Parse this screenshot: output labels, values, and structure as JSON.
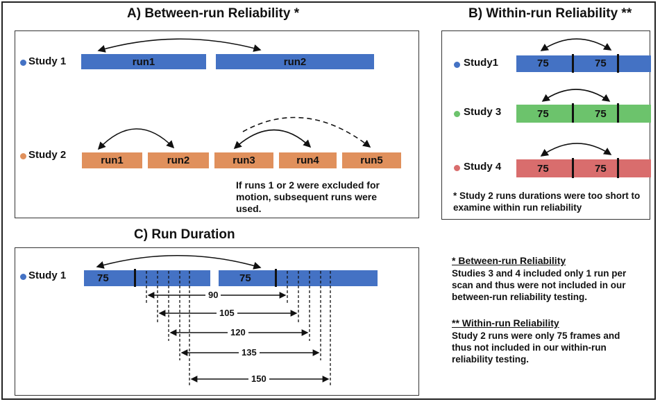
{
  "panel_a": {
    "title": "A) Between-run Reliability *",
    "study1": {
      "label": "Study 1",
      "dot_color": "#4472c4",
      "runs": [
        "run1",
        "run2"
      ]
    },
    "study2": {
      "label": "Study 2",
      "dot_color": "#e0905c",
      "runs": [
        "run1",
        "run2",
        "run3",
        "run4",
        "run5"
      ]
    },
    "note": "If runs 1 or 2 were excluded for motion,  subsequent runs were used."
  },
  "panel_b": {
    "title": "B) Within-run Reliability **",
    "studies": [
      {
        "label": "Study1",
        "dot_color": "#4472c4",
        "segments": [
          "75",
          "75"
        ]
      },
      {
        "label": "Study 3",
        "dot_color": "#6cc36c",
        "segments": [
          "75",
          "75"
        ]
      },
      {
        "label": "Study 4",
        "dot_color": "#d96d6d",
        "segments": [
          "75",
          "75"
        ]
      }
    ],
    "note": "* Study 2 runs durations were too short to examine within run reliability"
  },
  "panel_c": {
    "title": "C) Run Duration",
    "study_label": "Study 1",
    "dot_color": "#4472c4",
    "run_labels": [
      "75",
      "75"
    ],
    "durations": [
      "90",
      "105",
      "120",
      "135",
      "150"
    ]
  },
  "notes": {
    "between_heading": "* Between-run Reliability",
    "between_text": "Studies 3 and 4 included only 1 run per scan and thus were not included in our between-run reliability testing.",
    "within_heading": "** Within-run Reliability",
    "within_text": "Study 2 runs were only 75 frames and thus not included in our within-run reliability testing."
  }
}
